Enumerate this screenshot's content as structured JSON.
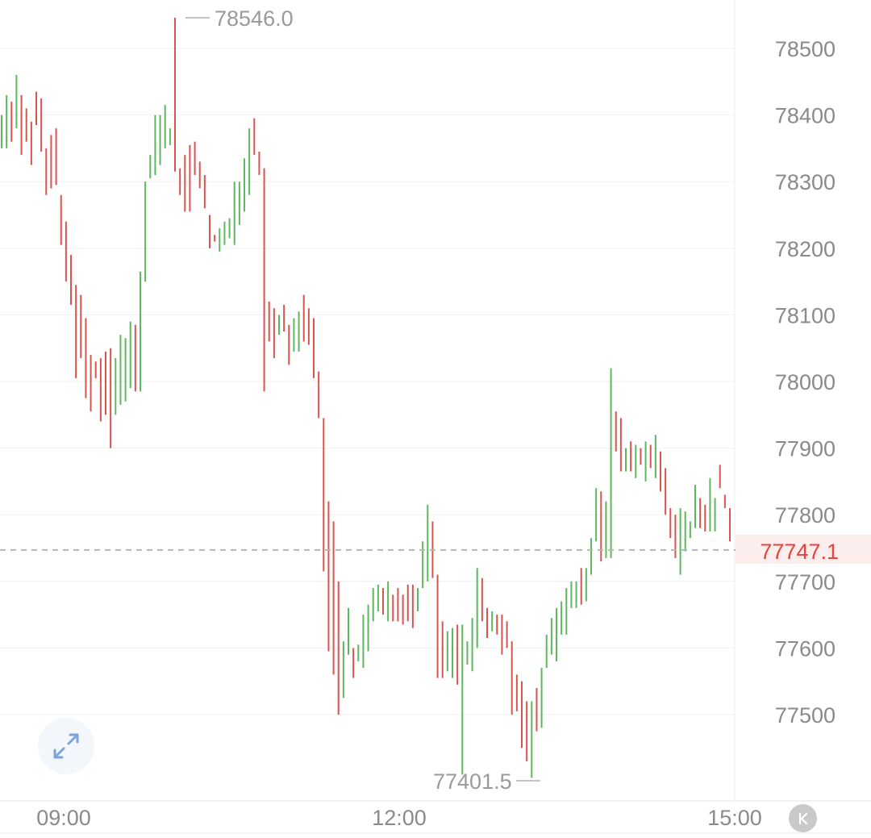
{
  "chart_data": {
    "type": "ohlc",
    "x_ticks": [
      "09:00",
      "12:00",
      "15:00"
    ],
    "y_ticks": [
      "78500",
      "78400",
      "78300",
      "78200",
      "78100",
      "78000",
      "77900",
      "77800",
      "77700",
      "77600",
      "77500"
    ],
    "ylim": [
      77390,
      78560
    ],
    "grid": true,
    "high_label": "78546.0",
    "low_label": "77401.5",
    "current_label": "77747.1",
    "current_value": 77747.1,
    "colors": {
      "up": "#5cb85c",
      "down": "#d9534f",
      "current": "#e8413e"
    },
    "bars": [
      [
        78400,
        78350,
        "up"
      ],
      [
        78430,
        78350,
        "up"
      ],
      [
        78420,
        78360,
        "down"
      ],
      [
        78460,
        78380,
        "up"
      ],
      [
        78430,
        78340,
        "down"
      ],
      [
        78410,
        78360,
        "down"
      ],
      [
        78390,
        78325,
        "down"
      ],
      [
        78435,
        78385,
        "down"
      ],
      [
        78425,
        78345,
        "down"
      ],
      [
        78350,
        78280,
        "down"
      ],
      [
        78370,
        78290,
        "down"
      ],
      [
        78380,
        78295,
        "down"
      ],
      [
        78280,
        78205,
        "down"
      ],
      [
        78240,
        78150,
        "down"
      ],
      [
        78190,
        78115,
        "down"
      ],
      [
        78145,
        78005,
        "down"
      ],
      [
        78130,
        78035,
        "down"
      ],
      [
        78095,
        77975,
        "down"
      ],
      [
        78040,
        77955,
        "down"
      ],
      [
        78030,
        78005,
        "down"
      ],
      [
        78035,
        77940,
        "down"
      ],
      [
        78045,
        77950,
        "down"
      ],
      [
        78050,
        77900,
        "down"
      ],
      [
        78035,
        77950,
        "up"
      ],
      [
        78070,
        77965,
        "up"
      ],
      [
        78065,
        77970,
        "up"
      ],
      [
        78090,
        77990,
        "up"
      ],
      [
        78085,
        77985,
        "down"
      ],
      [
        78165,
        77985,
        "up"
      ],
      [
        78300,
        78150,
        "up"
      ],
      [
        78340,
        78305,
        "up"
      ],
      [
        78400,
        78310,
        "up"
      ],
      [
        78400,
        78325,
        "up"
      ],
      [
        78415,
        78350,
        "up"
      ],
      [
        78380,
        78355,
        "up"
      ],
      [
        78546,
        78315,
        "down"
      ],
      [
        78320,
        78280,
        "down"
      ],
      [
        78340,
        78255,
        "down"
      ],
      [
        78355,
        78255,
        "down"
      ],
      [
        78360,
        78310,
        "down"
      ],
      [
        78330,
        78290,
        "down"
      ],
      [
        78310,
        78260,
        "down"
      ],
      [
        78250,
        78200,
        "down"
      ],
      [
        78220,
        78210,
        "down"
      ],
      [
        78230,
        78195,
        "up"
      ],
      [
        78240,
        78205,
        "up"
      ],
      [
        78245,
        78215,
        "up"
      ],
      [
        78300,
        78205,
        "up"
      ],
      [
        78300,
        78235,
        "up"
      ],
      [
        78335,
        78255,
        "up"
      ],
      [
        78380,
        78280,
        "up"
      ],
      [
        78395,
        78340,
        "down"
      ],
      [
        78345,
        78310,
        "down"
      ],
      [
        78320,
        77985,
        "down"
      ],
      [
        78120,
        78060,
        "down"
      ],
      [
        78110,
        78035,
        "down"
      ],
      [
        78100,
        78070,
        "up"
      ],
      [
        78115,
        78075,
        "down"
      ],
      [
        78085,
        78025,
        "down"
      ],
      [
        78095,
        78045,
        "up"
      ],
      [
        78105,
        78045,
        "up"
      ],
      [
        78130,
        78060,
        "down"
      ],
      [
        78110,
        78055,
        "down"
      ],
      [
        78095,
        78005,
        "down"
      ],
      [
        78015,
        77945,
        "down"
      ],
      [
        77945,
        77715,
        "down"
      ],
      [
        77820,
        77595,
        "down"
      ],
      [
        77790,
        77560,
        "down"
      ],
      [
        77700,
        77500,
        "down"
      ],
      [
        77610,
        77525,
        "up"
      ],
      [
        77660,
        77590,
        "up"
      ],
      [
        77600,
        77555,
        "down"
      ],
      [
        77605,
        77580,
        "up"
      ],
      [
        77650,
        77570,
        "up"
      ],
      [
        77665,
        77595,
        "up"
      ],
      [
        77690,
        77640,
        "up"
      ],
      [
        77695,
        77655,
        "up"
      ],
      [
        77690,
        77650,
        "down"
      ],
      [
        77700,
        77640,
        "up"
      ],
      [
        77680,
        77640,
        "down"
      ],
      [
        77690,
        77640,
        "down"
      ],
      [
        77680,
        77635,
        "down"
      ],
      [
        77695,
        77640,
        "down"
      ],
      [
        77695,
        77630,
        "down"
      ],
      [
        77690,
        77655,
        "up"
      ],
      [
        77760,
        77690,
        "up"
      ],
      [
        77815,
        77700,
        "up"
      ],
      [
        77790,
        77705,
        "down"
      ],
      [
        77710,
        77555,
        "down"
      ],
      [
        77640,
        77555,
        "down"
      ],
      [
        77625,
        77565,
        "up"
      ],
      [
        77630,
        77555,
        "up"
      ],
      [
        77635,
        77545,
        "down"
      ],
      [
        77635,
        77410,
        "up"
      ],
      [
        77610,
        77575,
        "up"
      ],
      [
        77645,
        77565,
        "up"
      ],
      [
        77720,
        77600,
        "up"
      ],
      [
        77705,
        77640,
        "down"
      ],
      [
        77660,
        77615,
        "down"
      ],
      [
        77655,
        77625,
        "up"
      ],
      [
        77650,
        77620,
        "down"
      ],
      [
        77650,
        77590,
        "down"
      ],
      [
        77640,
        77600,
        "down"
      ],
      [
        77610,
        77500,
        "down"
      ],
      [
        77560,
        77505,
        "down"
      ],
      [
        77550,
        77450,
        "down"
      ],
      [
        77520,
        77430,
        "down"
      ],
      [
        77520,
        77405,
        "up"
      ],
      [
        77540,
        77475,
        "down"
      ],
      [
        77570,
        77480,
        "up"
      ],
      [
        77620,
        77570,
        "up"
      ],
      [
        77645,
        77590,
        "up"
      ],
      [
        77660,
        77580,
        "up"
      ],
      [
        77670,
        77620,
        "up"
      ],
      [
        77690,
        77620,
        "up"
      ],
      [
        77700,
        77660,
        "up"
      ],
      [
        77700,
        77660,
        "up"
      ],
      [
        77720,
        77665,
        "down"
      ],
      [
        77720,
        77670,
        "up"
      ],
      [
        77765,
        77710,
        "up"
      ],
      [
        77840,
        77760,
        "up"
      ],
      [
        77835,
        77730,
        "down"
      ],
      [
        77820,
        77735,
        "up"
      ],
      [
        78020,
        77735,
        "up"
      ],
      [
        77955,
        77895,
        "down"
      ],
      [
        77945,
        77865,
        "down"
      ],
      [
        77900,
        77865,
        "up"
      ],
      [
        77910,
        77865,
        "down"
      ],
      [
        77905,
        77855,
        "up"
      ],
      [
        77900,
        77875,
        "down"
      ],
      [
        77910,
        77850,
        "up"
      ],
      [
        77905,
        77870,
        "down"
      ],
      [
        77920,
        77855,
        "up"
      ],
      [
        77895,
        77835,
        "down"
      ],
      [
        77870,
        77800,
        "down"
      ],
      [
        77810,
        77765,
        "down"
      ],
      [
        77800,
        77735,
        "down"
      ],
      [
        77810,
        77710,
        "up"
      ],
      [
        77805,
        77745,
        "up"
      ],
      [
        77790,
        77765,
        "up"
      ],
      [
        77845,
        77780,
        "up"
      ],
      [
        77825,
        77780,
        "down"
      ],
      [
        77815,
        77775,
        "down"
      ],
      [
        77855,
        77775,
        "up"
      ],
      [
        77825,
        77775,
        "up"
      ],
      [
        77875,
        77840,
        "down"
      ],
      [
        77830,
        77810,
        "down"
      ],
      [
        77810,
        77760,
        "down"
      ]
    ]
  }
}
